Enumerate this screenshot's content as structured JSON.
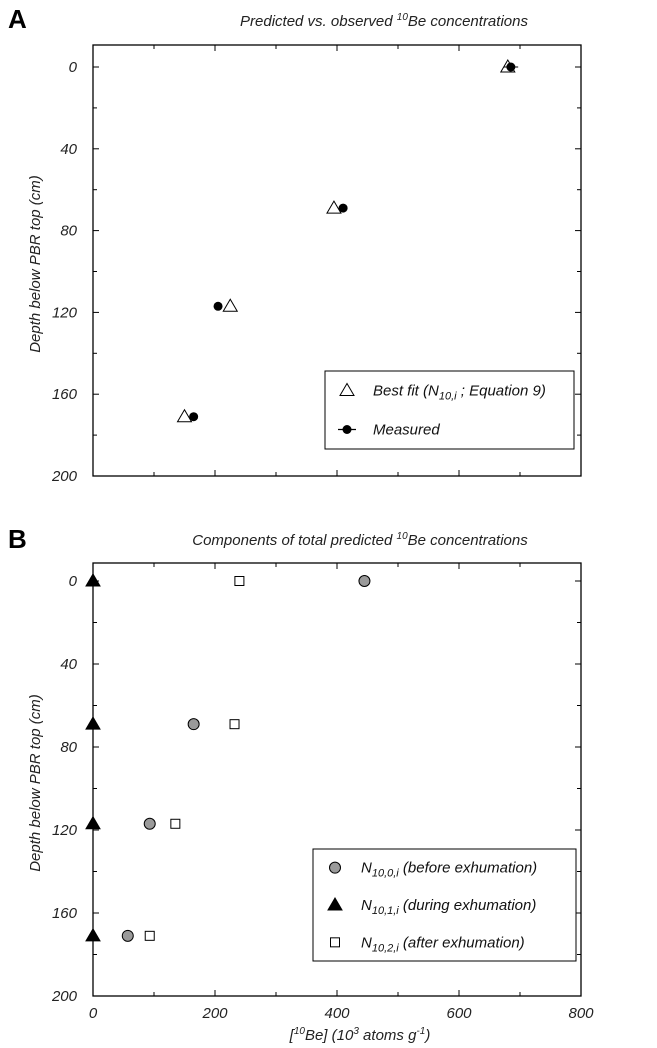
{
  "chart_data": [
    {
      "type": "scatter",
      "panel": "A",
      "title": "Predicted vs. observed {10}Be concentrations",
      "title_parts": {
        "pre": "Predicted vs. observed ",
        "sup": "10",
        "post": "Be concentrations"
      },
      "ylabel": "Depth below PBR top (cm)",
      "xlabel": "",
      "xlim": [
        0,
        800
      ],
      "ylim": [
        200,
        0
      ],
      "y_ticks": [
        0,
        40,
        80,
        120,
        160,
        200
      ],
      "x_ticks": [],
      "legend_position": "bottom-right",
      "series": [
        {
          "name": "Best fit (N10,i ; Equation 9)",
          "marker": "open-triangle",
          "legend_parts": {
            "pre": "Best fit (N",
            "sub": "10,i",
            "post": " ; Equation 9)"
          },
          "points": [
            [
              680,
              0
            ],
            [
              395,
              69
            ],
            [
              225,
              117
            ],
            [
              150,
              171
            ]
          ]
        },
        {
          "name": "Measured",
          "marker": "filled-circle-errorbar",
          "legend_parts": {
            "pre": "Measured",
            "sub": "",
            "post": ""
          },
          "points": [
            [
              685,
              0,
              12
            ],
            [
              410,
              69,
              0
            ],
            [
              205,
              117,
              0
            ],
            [
              165,
              171,
              0
            ]
          ]
        }
      ]
    },
    {
      "type": "scatter",
      "panel": "B",
      "title": "Components of total predicted {10}Be concentrations",
      "title_parts": {
        "pre": "Components of total predicted ",
        "sup": "10",
        "post": "Be concentrations"
      },
      "ylabel": "Depth below PBR top (cm)",
      "xlabel": "[10Be] (103 atoms g-1)",
      "xlim": [
        0,
        800
      ],
      "ylim": [
        200,
        0
      ],
      "y_ticks": [
        0,
        40,
        80,
        120,
        160,
        200
      ],
      "x_ticks": [
        0,
        200,
        400,
        600,
        800
      ],
      "legend_position": "bottom-right",
      "series": [
        {
          "name": "N10,0,i (before exhumation)",
          "marker": "grey-circle",
          "legend_parts": {
            "pre": "N",
            "sub": "10,0,i",
            "post": "  (before exhumation)"
          },
          "points": [
            [
              445,
              0
            ],
            [
              165,
              69
            ],
            [
              93,
              117
            ],
            [
              57,
              171
            ]
          ]
        },
        {
          "name": "N10,1,i (during exhumation)",
          "marker": "filled-triangle",
          "legend_parts": {
            "pre": "N",
            "sub": "10,1,i",
            "post": "  (during exhumation)"
          },
          "points": [
            [
              0,
              0
            ],
            [
              0,
              69
            ],
            [
              0,
              117
            ],
            [
              0,
              171
            ]
          ]
        },
        {
          "name": "N10,2,i (after exhumation)",
          "marker": "open-square",
          "legend_parts": {
            "pre": "N",
            "sub": "10,2,i",
            "post": "  (after exhumation)"
          },
          "points": [
            [
              240,
              0
            ],
            [
              232,
              69
            ],
            [
              135,
              117
            ],
            [
              93,
              171
            ]
          ]
        }
      ]
    }
  ]
}
